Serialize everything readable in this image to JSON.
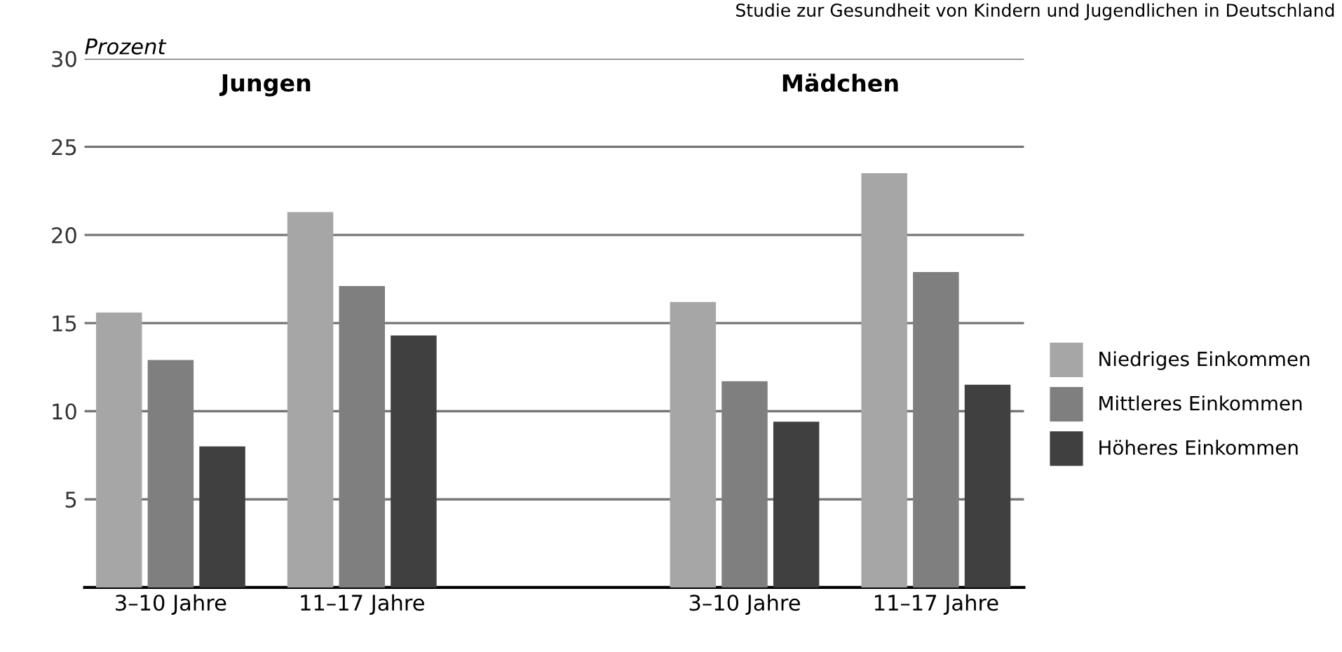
{
  "chart_data": {
    "type": "bar",
    "ylabel": "Prozent",
    "categories": [
      "3–10 Jahre",
      "11–17 Jahre",
      null,
      "3–10 Jahre",
      "11–17 Jahre"
    ],
    "series": [
      {
        "name": "Niedriges Einkommen",
        "color": "#a6a6a6",
        "values": [
          15.6,
          21.3,
          null,
          16.2,
          23.5
        ]
      },
      {
        "name": "Mittleres Einkommen",
        "color": "#7f7f7f",
        "values": [
          12.9,
          17.1,
          null,
          11.7,
          17.9
        ]
      },
      {
        "name": "Höheres Einkommen",
        "color": "#404040",
        "values": [
          8.0,
          14.3,
          null,
          9.4,
          11.5
        ]
      }
    ],
    "ylim": [
      0,
      30
    ],
    "yticks": [
      5,
      10,
      15,
      20,
      25,
      30
    ],
    "grid": "y",
    "legend": "right",
    "annotations": [
      "Studie zur Gesundheit von Kindern und Jugendlichen in Deutschland",
      "Jungen",
      "Mädchen"
    ]
  }
}
